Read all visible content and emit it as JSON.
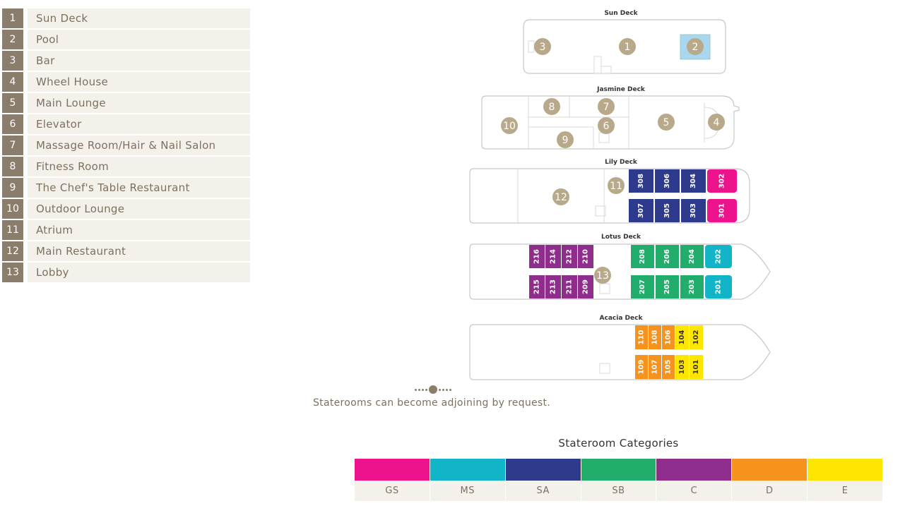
{
  "legend": [
    {
      "num": "1",
      "label": "Sun Deck"
    },
    {
      "num": "2",
      "label": "Pool"
    },
    {
      "num": "3",
      "label": "Bar"
    },
    {
      "num": "4",
      "label": "Wheel House"
    },
    {
      "num": "5",
      "label": "Main Lounge"
    },
    {
      "num": "6",
      "label": "Elevator"
    },
    {
      "num": "7",
      "label": "Massage Room/Hair & Nail Salon"
    },
    {
      "num": "8",
      "label": "Fitness Room"
    },
    {
      "num": "9",
      "label": "The Chef's Table Restaurant"
    },
    {
      "num": "10",
      "label": "Outdoor Lounge"
    },
    {
      "num": "11",
      "label": "Atrium"
    },
    {
      "num": "12",
      "label": "Main Restaurant"
    },
    {
      "num": "13",
      "label": "Lobby"
    }
  ],
  "decks": {
    "sun": "Sun Deck",
    "jasmine": "Jasmine Deck",
    "lily": "Lily Deck",
    "lotus": "Lotus Deck",
    "acacia": "Acacia Deck"
  },
  "markers": {
    "m1": "1",
    "m2": "2",
    "m3": "3",
    "m4": "4",
    "m5": "5",
    "m6": "6",
    "m7": "7",
    "m8": "8",
    "m9": "9",
    "m10": "10",
    "m11": "11",
    "m12": "12",
    "m13": "13"
  },
  "rooms": {
    "lily": [
      {
        "id": "308",
        "cat": "SA"
      },
      {
        "id": "306",
        "cat": "SA"
      },
      {
        "id": "304",
        "cat": "SA"
      },
      {
        "id": "302",
        "cat": "GS"
      },
      {
        "id": "307",
        "cat": "SA"
      },
      {
        "id": "305",
        "cat": "SA"
      },
      {
        "id": "303",
        "cat": "SA"
      },
      {
        "id": "301",
        "cat": "GS"
      }
    ],
    "lotus": [
      {
        "id": "216",
        "cat": "C"
      },
      {
        "id": "214",
        "cat": "C"
      },
      {
        "id": "212",
        "cat": "C"
      },
      {
        "id": "210",
        "cat": "C"
      },
      {
        "id": "208",
        "cat": "SB"
      },
      {
        "id": "206",
        "cat": "SB"
      },
      {
        "id": "204",
        "cat": "SB"
      },
      {
        "id": "202",
        "cat": "MS"
      },
      {
        "id": "215",
        "cat": "C"
      },
      {
        "id": "213",
        "cat": "C"
      },
      {
        "id": "211",
        "cat": "C"
      },
      {
        "id": "209",
        "cat": "C"
      },
      {
        "id": "207",
        "cat": "SB"
      },
      {
        "id": "205",
        "cat": "SB"
      },
      {
        "id": "203",
        "cat": "SB"
      },
      {
        "id": "201",
        "cat": "MS"
      }
    ],
    "acacia": [
      {
        "id": "110",
        "cat": "D"
      },
      {
        "id": "108",
        "cat": "D"
      },
      {
        "id": "106",
        "cat": "D"
      },
      {
        "id": "104",
        "cat": "E"
      },
      {
        "id": "102",
        "cat": "E"
      },
      {
        "id": "109",
        "cat": "D"
      },
      {
        "id": "107",
        "cat": "D"
      },
      {
        "id": "105",
        "cat": "D"
      },
      {
        "id": "103",
        "cat": "E"
      },
      {
        "id": "101",
        "cat": "E"
      }
    ]
  },
  "note": "Staterooms can become adjoining by request.",
  "categories_title": "Stateroom Categories",
  "categories": [
    {
      "code": "GS",
      "color": "#ec138d"
    },
    {
      "code": "MS",
      "color": "#12b5c8"
    },
    {
      "code": "SA",
      "color": "#2e3a8c"
    },
    {
      "code": "SB",
      "color": "#22ad6c"
    },
    {
      "code": "C",
      "color": "#8e2d8c"
    },
    {
      "code": "D",
      "color": "#f6921e"
    },
    {
      "code": "E",
      "color": "#ffe600"
    }
  ],
  "colors": {
    "marker": "#b8a98a",
    "accent": "#8b7d6b",
    "pool": "#a9d8ee"
  }
}
